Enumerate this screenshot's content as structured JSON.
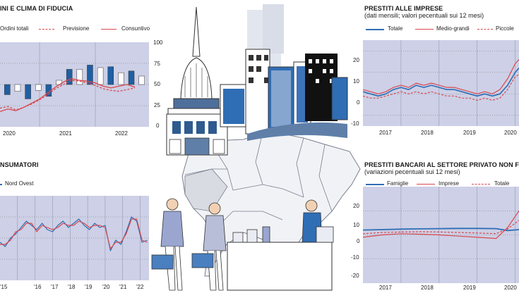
{
  "colors": {
    "plot_bg": "#cdd0e6",
    "bar_blue": "#1f5fa3",
    "bar_white": "#ffffff",
    "red": "#d9484f",
    "blue": "#2f6db5",
    "grid": "#777777"
  },
  "panels": {
    "tl": {
      "title": "INI E CLIMA DI FIDUCIA",
      "legend": [
        "Ordini totali",
        "Previsione",
        "Consuntivo"
      ],
      "right_ticks": [
        "100",
        "75",
        "50",
        "25",
        "0"
      ],
      "x_ticks": [
        "2020",
        "2021",
        "2022"
      ]
    },
    "tr": {
      "title": "PRESTITI ALLE IMPRESE",
      "subtitle": "(dati mensili; valori pecentuali sui 12 mesi)",
      "legend": [
        "Totale",
        "Medio-grandi",
        "Piccole"
      ],
      "y_ticks": [
        "20",
        "10",
        "0",
        "-10"
      ],
      "x_ticks": [
        "2017",
        "2018",
        "2019",
        "2020"
      ]
    },
    "bl": {
      "title": "NSUMATORI",
      "legend": [
        "Nord Ovest"
      ],
      "x_ticks": [
        "'15",
        "'16",
        "'17",
        "'18",
        "'19",
        "'20",
        "'21",
        "'22"
      ]
    },
    "br": {
      "title": "PRESTITI BANCARI AL SETTORE PRIVATO NON F",
      "subtitle": "(variazioni pecentuali sui 12 mesi)",
      "legend": [
        "Famiglie",
        "Imprese",
        "Totale"
      ],
      "y_ticks": [
        "20",
        "10",
        "0",
        "-10",
        "-20"
      ],
      "x_ticks": [
        "2017",
        "2018",
        "2019",
        "2020"
      ]
    }
  },
  "chart_data": [
    {
      "type": "bar",
      "title": "INI E CLIMA DI FIDUCIA",
      "ylim": [
        0,
        100
      ],
      "x_range": [
        "2019-10",
        "2022-09"
      ],
      "bars_note": "Ordini totali (alternating blue/white quarterly bars above and below the 50 line)",
      "bars": [
        {
          "x": "2019-Q4",
          "value": 38,
          "fill": "blue"
        },
        {
          "x": "2020-Q1",
          "value": 42,
          "fill": "white"
        },
        {
          "x": "2020-Q1b",
          "value": 33,
          "fill": "blue"
        },
        {
          "x": "2020-Q2",
          "value": 43,
          "fill": "white"
        },
        {
          "x": "2020-Q2b",
          "value": 36,
          "fill": "blue"
        },
        {
          "x": "2020-Q3",
          "value": 55,
          "fill": "white"
        },
        {
          "x": "2021-Q1",
          "value": 68,
          "fill": "blue"
        },
        {
          "x": "2021-Q1b",
          "value": 68,
          "fill": "white"
        },
        {
          "x": "2021-Q2",
          "value": 73,
          "fill": "blue"
        },
        {
          "x": "2021-Q3",
          "value": 70,
          "fill": "white"
        },
        {
          "x": "2021-Q4",
          "value": 71,
          "fill": "blue"
        },
        {
          "x": "2022-Q1",
          "value": 64,
          "fill": "white"
        },
        {
          "x": "2022-Q2",
          "value": 66,
          "fill": "blue"
        },
        {
          "x": "2022-Q3",
          "value": 60,
          "fill": "white"
        }
      ],
      "series": [
        {
          "name": "Previsione",
          "style": "dashed",
          "values": [
            22,
            24,
            20,
            23,
            27,
            32,
            38,
            45,
            50,
            55,
            54,
            52,
            49,
            45,
            43,
            42,
            44,
            46
          ]
        },
        {
          "name": "Consuntivo",
          "style": "solid",
          "values": [
            18,
            21,
            19,
            23,
            28,
            33,
            40,
            47,
            53,
            57,
            55,
            54,
            52,
            48,
            46,
            48,
            50,
            47
          ]
        }
      ]
    },
    {
      "type": "line",
      "title": "PRESTITI ALLE IMPRESE",
      "ylim": [
        -15,
        25
      ],
      "x_range": [
        2016.5,
        2020.6
      ],
      "series": [
        {
          "name": "Totale",
          "x": [
            2016.5,
            2016.7,
            2016.9,
            2017.1,
            2017.3,
            2017.5,
            2017.7,
            2017.9,
            2018.1,
            2018.3,
            2018.5,
            2018.7,
            2018.9,
            2019.1,
            2019.3,
            2019.5,
            2019.7,
            2019.9,
            2020.1,
            2020.3,
            2020.5,
            2020.6
          ],
          "y": [
            1,
            0,
            -1,
            0,
            2,
            3,
            2,
            4,
            3,
            4,
            3,
            2,
            2,
            1,
            0,
            -1,
            0,
            -1,
            0,
            4,
            10,
            12
          ]
        },
        {
          "name": "Medio-grandi",
          "x": [
            2016.5,
            2016.7,
            2016.9,
            2017.1,
            2017.3,
            2017.5,
            2017.7,
            2017.9,
            2018.1,
            2018.3,
            2018.5,
            2018.7,
            2018.9,
            2019.1,
            2019.3,
            2019.5,
            2019.7,
            2019.9,
            2020.1,
            2020.3,
            2020.5,
            2020.6
          ],
          "y": [
            2,
            1,
            0,
            1,
            3,
            4,
            3,
            5,
            4,
            5,
            4,
            3,
            3,
            2,
            1,
            0,
            1,
            0,
            2,
            7,
            14,
            16
          ]
        },
        {
          "name": "Piccole",
          "x": [
            2016.5,
            2016.7,
            2016.9,
            2017.1,
            2017.3,
            2017.5,
            2017.7,
            2017.9,
            2018.1,
            2018.3,
            2018.5,
            2018.7,
            2018.9,
            2019.1,
            2019.3,
            2019.5,
            2019.7,
            2019.9,
            2020.1,
            2020.3,
            2020.5,
            2020.6
          ],
          "y": [
            -1,
            -2,
            -2,
            -1,
            0,
            1,
            0,
            1,
            0,
            1,
            0,
            -1,
            -1,
            -2,
            -2,
            -3,
            -2,
            -3,
            -2,
            2,
            8,
            9
          ]
        }
      ]
    },
    {
      "type": "line",
      "title": "NSUMATORI",
      "ylim": [
        80,
        120
      ],
      "x_range": [
        2014.0,
        2022.5
      ],
      "series": [
        {
          "name": "Nord Ovest",
          "x": [
            2014.0,
            2014.3,
            2014.6,
            2014.9,
            2015.2,
            2015.5,
            2015.8,
            2016.1,
            2016.4,
            2016.7,
            2017.0,
            2017.3,
            2017.6,
            2017.9,
            2018.2,
            2018.5,
            2018.8,
            2019.1,
            2019.4,
            2019.7,
            2020.0,
            2020.3,
            2020.6,
            2020.9,
            2021.2,
            2021.5,
            2021.8,
            2022.1,
            2022.4
          ],
          "y": [
            98,
            96,
            100,
            102,
            105,
            108,
            106,
            104,
            107,
            104,
            103,
            106,
            108,
            105,
            107,
            109,
            106,
            104,
            107,
            105,
            106,
            94,
            99,
            97,
            103,
            110,
            108,
            98,
            99
          ]
        },
        {
          "name": "",
          "x": [
            2014.0,
            2014.3,
            2014.6,
            2014.9,
            2015.2,
            2015.5,
            2015.8,
            2016.1,
            2016.4,
            2016.7,
            2017.0,
            2017.3,
            2017.6,
            2017.9,
            2018.2,
            2018.5,
            2018.8,
            2019.1,
            2019.4,
            2019.7,
            2020.0,
            2020.3,
            2020.6,
            2020.9,
            2021.2,
            2021.5,
            2021.8,
            2022.1,
            2022.4
          ],
          "y": [
            97,
            97,
            99,
            103,
            104,
            107,
            107,
            103,
            106,
            105,
            104,
            105,
            107,
            106,
            106,
            108,
            107,
            105,
            106,
            106,
            105,
            95,
            98,
            98,
            102,
            109,
            109,
            99,
            98
          ]
        }
      ]
    },
    {
      "type": "line",
      "title": "PRESTITI BANCARI AL SETTORE PRIVATO NON F",
      "ylim": [
        -20,
        20
      ],
      "x_range": [
        2016.5,
        2020.6
      ],
      "series": [
        {
          "name": "Famiglie",
          "x": [
            2016.5,
            2017.0,
            2017.5,
            2018.0,
            2018.5,
            2019.0,
            2019.5,
            2020.0,
            2020.3,
            2020.6
          ],
          "y": [
            2,
            2.2,
            2.4,
            2.5,
            2.6,
            2.7,
            2.7,
            2.6,
            1.8,
            2.2
          ]
        },
        {
          "name": "Imprese",
          "x": [
            2016.5,
            2017.0,
            2017.5,
            2018.0,
            2018.5,
            2019.0,
            2019.5,
            2020.0,
            2020.3,
            2020.6
          ],
          "y": [
            -1,
            0,
            0.5,
            0.3,
            0,
            -0.5,
            -1,
            -1.5,
            3,
            10
          ]
        },
        {
          "name": "Totale",
          "x": [
            2016.5,
            2017.0,
            2017.5,
            2018.0,
            2018.5,
            2019.0,
            2019.5,
            2020.0,
            2020.3,
            2020.6
          ],
          "y": [
            0.5,
            1,
            1.2,
            1.3,
            1.2,
            1,
            0.8,
            0.5,
            2.5,
            6
          ]
        }
      ]
    }
  ]
}
